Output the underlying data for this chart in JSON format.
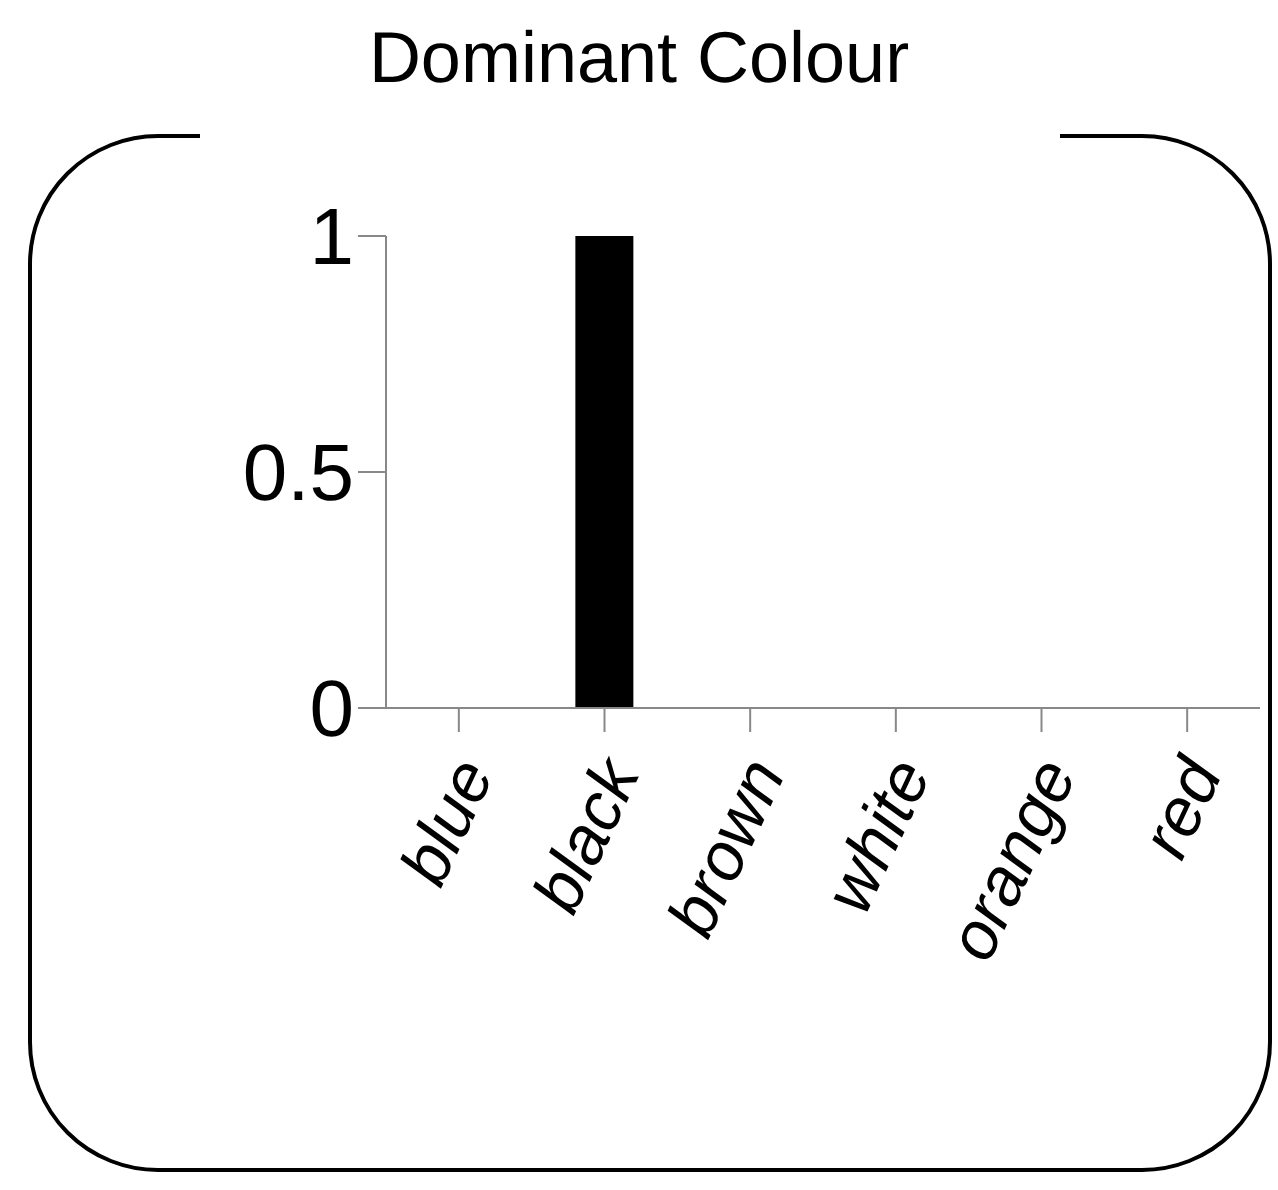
{
  "chart_data": {
    "type": "bar",
    "title": "Dominant Colour",
    "categories": [
      "blue",
      "black",
      "brown",
      "white",
      "orange",
      "red"
    ],
    "values": [
      0,
      1,
      0,
      0,
      0,
      0
    ],
    "color": "#000000",
    "ylim": [
      0,
      1
    ],
    "yticks": [
      0,
      0.5,
      1
    ],
    "grid": false
  }
}
